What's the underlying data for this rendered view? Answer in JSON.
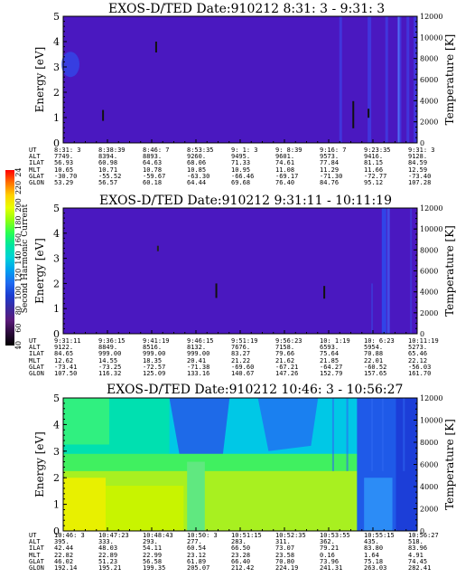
{
  "colorbar": {
    "label": "Second Harmonic Current",
    "ticks": [
      "40",
      "60",
      "80",
      "100",
      "120",
      "140",
      "160",
      "180",
      "200",
      "220",
      "240"
    ],
    "colors": [
      "#000000",
      "#2a0a3a",
      "#5a1a7a",
      "#3b2aa0",
      "#1b3cd0",
      "#1e6af0",
      "#00a0f0",
      "#00d2d8",
      "#00e6a0",
      "#2aff50",
      "#90ff10",
      "#e8ff00",
      "#ffd000",
      "#ff7000",
      "#ff0000"
    ]
  },
  "panels": [
    {
      "title": "EXOS-D/TED   Date:910212  8:31: 3 - 9:31: 3",
      "ylabel": "Energy [eV]",
      "rlabel": "Temperature [K]",
      "yticks": [
        "0",
        "1",
        "2",
        "3",
        "4",
        "5"
      ],
      "rticks": [
        "0",
        "2000",
        "4000",
        "6000",
        "8000",
        "10000",
        "12000"
      ],
      "background": "#4a18c0",
      "rows": [
        {
          "label": "UT",
          "values": [
            "8:31: 3",
            "8:38:39",
            "8:46: 7",
            "8:53:35",
            "9: 1: 3",
            "9: 8:39",
            "9:16: 7",
            "9:23:35",
            "9:31: 3"
          ]
        },
        {
          "label": "ALT",
          "values": [
            "7749.",
            "8394.",
            "8893.",
            "9260.",
            "9495.",
            "9601.",
            "9573.",
            "9416.",
            "9128."
          ]
        },
        {
          "label": "ILAT",
          "values": [
            "56.93",
            "60.98",
            "64.63",
            "68.06",
            "71.33",
            "74.61",
            "77.84",
            "81.15",
            "84.59"
          ]
        },
        {
          "label": "MLT",
          "values": [
            "10.65",
            "10.71",
            "10.78",
            "10.85",
            "10.95",
            "11.08",
            "11.29",
            "11.66",
            "12.59"
          ]
        },
        {
          "label": "GLAT",
          "values": [
            "-30.70",
            "-55.52",
            "-59.67",
            "-63.30",
            "-66.46",
            "-69.17",
            "-71.30",
            "-72.77",
            "-73.40"
          ]
        },
        {
          "label": "GLON",
          "values": [
            "53.29",
            "56.57",
            "60.18",
            "64.44",
            "69.68",
            "76.40",
            "84.76",
            "95.12",
            "107.28"
          ]
        }
      ]
    },
    {
      "title": "EXOS-D/TED   Date:910212  9:31:11 - 10:11:19",
      "ylabel": "Energy [eV]",
      "rlabel": "Temperature [K]",
      "yticks": [
        "0",
        "1",
        "2",
        "3",
        "4",
        "5"
      ],
      "rticks": [
        "0",
        "2000",
        "4000",
        "6000",
        "8000",
        "10000",
        "12000"
      ],
      "background": "#4a18c0",
      "rows": [
        {
          "label": "UT",
          "values": [
            "9:31:11",
            "9:36:15",
            "9:41:19",
            "9:46:15",
            "9:51:19",
            "9:56:23",
            "10: 1:19",
            "10: 6:23",
            "10:11:19"
          ]
        },
        {
          "label": "ALT",
          "values": [
            "9122.",
            "8849.",
            "8516.",
            "8132.",
            "7676.",
            "7158.",
            "6593.",
            "5954.",
            "5273."
          ]
        },
        {
          "label": "ILAT",
          "values": [
            "84.65",
            "999.00",
            "999.00",
            "999.00",
            "83.27",
            "79.66",
            "75.64",
            "70.88",
            "65.46"
          ]
        },
        {
          "label": "MLT",
          "values": [
            "12.62",
            "14.55",
            "18.35",
            "20.41",
            "21.22",
            "21.62",
            "21.85",
            "22.01",
            "22.12"
          ]
        },
        {
          "label": "GLAT",
          "values": [
            "-73.41",
            "-73.25",
            "-72.57",
            "-71.38",
            "-69.60",
            "-67.21",
            "-64.27",
            "-60.52",
            "-56.03"
          ]
        },
        {
          "label": "GLON",
          "values": [
            "107.50",
            "116.32",
            "125.09",
            "133.16",
            "140.67",
            "147.26",
            "152.79",
            "157.65",
            "161.70"
          ]
        }
      ]
    },
    {
      "title": "EXOS-D/TED   Date:910212  10:46: 3 - 10:56:27",
      "ylabel": "Energy [eV]",
      "rlabel": "Temperature [K]",
      "yticks": [
        "0",
        "1",
        "2",
        "3",
        "4",
        "5"
      ],
      "rticks": [
        "0",
        "2000",
        "4000",
        "6000",
        "8000",
        "10000",
        "12000"
      ],
      "background": "#1e88f0",
      "rows": [
        {
          "label": "UT",
          "values": [
            "10:46: 3",
            "10:47:23",
            "10:48:43",
            "10:50: 3",
            "10:51:15",
            "10:52:35",
            "10:53:55",
            "10:55:15",
            "10:56:27"
          ]
        },
        {
          "label": "ALT",
          "values": [
            "395.",
            "333.",
            "293.",
            "277.",
            "283.",
            "311.",
            "362.",
            "435.",
            "518."
          ]
        },
        {
          "label": "ILAT",
          "values": [
            "42.44",
            "48.03",
            "54.11",
            "60.54",
            "66.50",
            "73.07",
            "79.21",
            "83.80",
            "83.96"
          ]
        },
        {
          "label": "MLT",
          "values": [
            "22.82",
            "22.89",
            "22.99",
            "23.12",
            "23.28",
            "23.58",
            "0.16",
            "1.64",
            "4.91"
          ]
        },
        {
          "label": "GLAT",
          "values": [
            "46.02",
            "51.23",
            "56.58",
            "61.89",
            "66.40",
            "70.80",
            "73.96",
            "75.18",
            "74.45"
          ]
        },
        {
          "label": "GLON",
          "values": [
            "192.14",
            "195.21",
            "199.35",
            "205.07",
            "212.42",
            "224.19",
            "241.31",
            "263.03",
            "282.41"
          ]
        }
      ]
    }
  ],
  "chart_data": [
    {
      "type": "heatmap",
      "title": "EXOS-D/TED   Date:910212  8:31: 3 - 9:31: 3",
      "ylabel": "Energy [eV]",
      "y2label": "Temperature [K]",
      "ylim": [
        0,
        5
      ],
      "y2lim": [
        0,
        12000
      ],
      "x": [
        "8:31: 3",
        "8:38:39",
        "8:46: 7",
        "8:53:35",
        "9: 1: 3",
        "9: 8:39",
        "9:16: 7",
        "9:23:35",
        "9:31: 3"
      ],
      "colorbar": {
        "label": "Second Harmonic Current",
        "range": [
          40,
          240
        ]
      }
    },
    {
      "type": "heatmap",
      "title": "EXOS-D/TED   Date:910212  9:31:11 - 10:11:19",
      "ylabel": "Energy [eV]",
      "y2label": "Temperature [K]",
      "ylim": [
        0,
        5
      ],
      "y2lim": [
        0,
        12000
      ],
      "x": [
        "9:31:11",
        "9:36:15",
        "9:41:19",
        "9:46:15",
        "9:51:19",
        "9:56:23",
        "10: 1:19",
        "10: 6:23",
        "10:11:19"
      ]
    },
    {
      "type": "heatmap",
      "title": "EXOS-D/TED   Date:910212  10:46: 3 - 10:56:27",
      "ylabel": "Energy [eV]",
      "y2label": "Temperature [K]",
      "ylim": [
        0,
        5
      ],
      "y2lim": [
        0,
        12000
      ],
      "x": [
        "10:46: 3",
        "10:47:23",
        "10:48:43",
        "10:50: 3",
        "10:51:15",
        "10:52:35",
        "10:53:55",
        "10:55:15",
        "10:56:27"
      ]
    }
  ]
}
